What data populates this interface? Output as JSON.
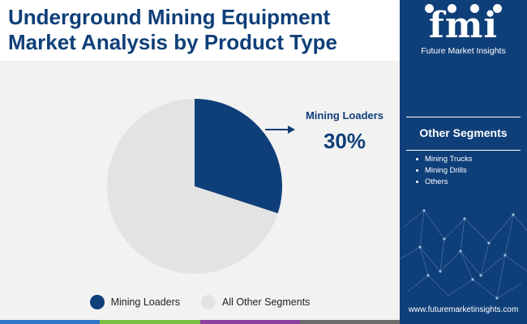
{
  "title": "Underground Mining Equipment Market Analysis by Product Type",
  "callout": {
    "label": "Mining Loaders",
    "value": "30%"
  },
  "legend": [
    {
      "label": "Mining Loaders",
      "color": "#0f3f79"
    },
    {
      "label": "All Other Segments",
      "color": "#e3e3e3"
    }
  ],
  "sidebar": {
    "logo_letters": "fmi",
    "logo_name": "Future Market Insights",
    "other_title": "Other Segments",
    "other_items": [
      "Mining Trucks",
      "Mining Drills",
      "Others"
    ],
    "website": "www.futuremarketinsights.com"
  },
  "colors": {
    "brand": "#0f3f79",
    "other": "#e3e3e3",
    "bottom_bar": [
      "#2e77c9",
      "#7bbf45",
      "#8c3f9e",
      "#6c6c6c"
    ]
  },
  "chart_data": {
    "type": "pie",
    "categories": [
      "Mining Loaders",
      "All Other Segments"
    ],
    "values": [
      30,
      70
    ],
    "unit": "%",
    "title": "Underground Mining Equipment Market Analysis by Product Type",
    "legend_position": "bottom",
    "annotations": [
      {
        "category": "Mining Loaders",
        "text": "30%"
      }
    ]
  }
}
